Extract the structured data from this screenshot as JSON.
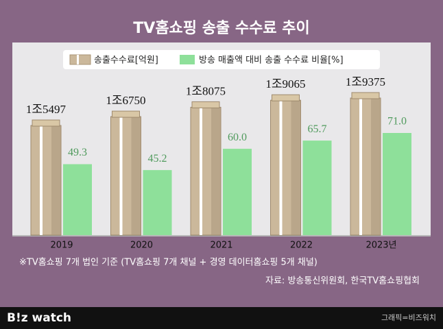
{
  "chart_data": {
    "type": "bar",
    "title": "TV홈쇼핑 송출 수수료 추이",
    "categories": [
      "2019",
      "2020",
      "2021",
      "2022",
      "2023년"
    ],
    "series": [
      {
        "name": "송출수수료[억원]",
        "color": "#cbb89b",
        "values": [
          15497,
          16750,
          18075,
          19065,
          19375
        ],
        "value_labels": [
          "1조5497",
          "1조6750",
          "1조8075",
          "1조9065",
          "1조9375"
        ]
      },
      {
        "name": "방송 매출액 대비 송출 수수료 비율[%]",
        "color": "#8ee09a",
        "axis": "y2",
        "values": [
          49.3,
          45.2,
          60.0,
          65.7,
          71.0
        ],
        "value_labels": [
          "49.3",
          "45.2",
          "60.0",
          "65.7",
          "71.0"
        ]
      }
    ],
    "note": "※TV홈쇼핑 7개 법인 기준 (TV홈쇼핑 7개 채널 + 경영 데이터홈쇼핑 5개 채널)",
    "source": "자료: 방송통신위원회, 한국TV홈쇼핑협회",
    "brand": "B!z watch",
    "credit": "그래픽=비즈워치"
  }
}
